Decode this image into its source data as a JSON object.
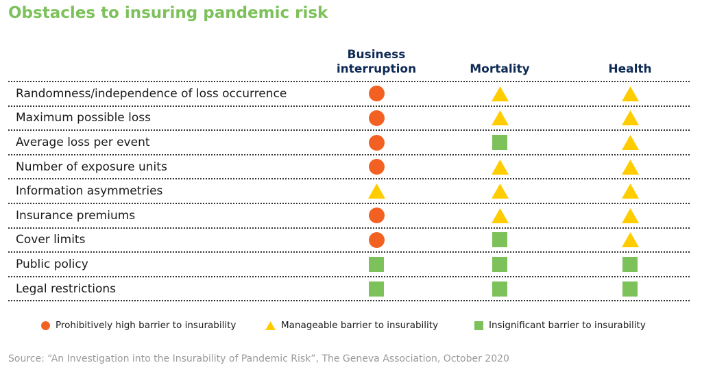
{
  "title": "Obstacles to insuring pandemic risk",
  "source": "Source: “An Investigation into the Insurability of Pandemic Risk”, The Geneva Association, October 2020",
  "colors": {
    "title": "#7dc15b",
    "header": "#0f2a55",
    "high": "#f26122",
    "manageable": "#ffcc00",
    "insignificant": "#7dc15b"
  },
  "chart_data": {
    "type": "table",
    "columns": [
      {
        "label_lines": [
          "Business",
          "interruption"
        ]
      },
      {
        "label_lines": [
          "Mortality"
        ]
      },
      {
        "label_lines": [
          "Health"
        ]
      }
    ],
    "rows": [
      {
        "label": "Randomness/independence of loss occurrence",
        "values": [
          "high",
          "manageable",
          "manageable"
        ]
      },
      {
        "label": "Maximum possible loss",
        "values": [
          "high",
          "manageable",
          "manageable"
        ]
      },
      {
        "label": "Average loss per event",
        "values": [
          "high",
          "insignificant",
          "manageable"
        ]
      },
      {
        "label": "Number of exposure units",
        "values": [
          "high",
          "manageable",
          "manageable"
        ]
      },
      {
        "label": "Information asymmetries",
        "values": [
          "manageable",
          "manageable",
          "manageable"
        ]
      },
      {
        "label": "Insurance premiums",
        "values": [
          "high",
          "manageable",
          "manageable"
        ]
      },
      {
        "label": "Cover limits",
        "values": [
          "high",
          "insignificant",
          "manageable"
        ]
      },
      {
        "label": "Public policy",
        "values": [
          "insignificant",
          "insignificant",
          "insignificant"
        ]
      },
      {
        "label": "Legal restrictions",
        "values": [
          "insignificant",
          "insignificant",
          "insignificant"
        ]
      }
    ],
    "legend": [
      {
        "key": "high",
        "shape": "circle",
        "label": "Prohibitively high barrier to insurability"
      },
      {
        "key": "manageable",
        "shape": "triangle",
        "label": "Manageable barrier to insurability"
      },
      {
        "key": "insignificant",
        "shape": "square",
        "label": "Insignificant barrier to insurability"
      }
    ]
  }
}
